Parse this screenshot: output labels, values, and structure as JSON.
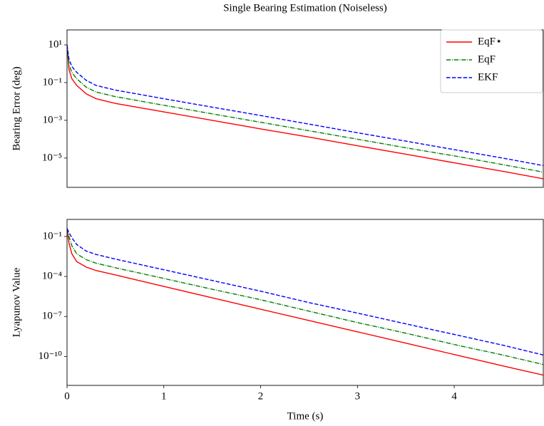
{
  "title": "Single Bearing Estimation (Noiseless)",
  "chart_data": [
    {
      "type": "line",
      "ylabel": "Bearing Error (deg)",
      "yscale": "log",
      "legend": "upper right",
      "x": [
        0,
        0.02,
        0.05,
        0.1,
        0.2,
        0.3,
        0.5,
        1,
        1.5,
        2,
        2.5,
        3,
        3.5,
        4,
        4.5,
        4.92
      ],
      "xlim": [
        0,
        4.92
      ],
      "ylim": [
        2.8e-07,
        62
      ],
      "yticks": [
        {
          "value": 10,
          "label": "10¹"
        },
        {
          "value": 0.1,
          "label": "10⁻¹"
        },
        {
          "value": 0.001,
          "label": "10⁻³"
        },
        {
          "value": 1e-05,
          "label": "10⁻⁵"
        }
      ],
      "series": [
        {
          "name": "EqF⋆",
          "color": "#ff0000",
          "linestyle": "solid",
          "values": [
            10,
            0.5,
            0.16,
            0.071,
            0.025,
            0.014,
            0.0079,
            0.0028,
            0.001,
            0.00035,
            0.00013,
            4.5e-05,
            1.6e-05,
            5.6e-06,
            2e-06,
            8e-07
          ]
        },
        {
          "name": "EqF",
          "color": "#008000",
          "linestyle": "dashdot",
          "values": [
            10,
            0.9,
            0.35,
            0.16,
            0.056,
            0.032,
            0.018,
            0.0063,
            0.0022,
            0.00079,
            0.00028,
            0.0001,
            3.5e-05,
            1.3e-05,
            4.5e-06,
            1.8e-06
          ]
        },
        {
          "name": "EKF",
          "color": "#0000ff",
          "linestyle": "dashed",
          "values": [
            10,
            1.8,
            0.71,
            0.35,
            0.13,
            0.071,
            0.04,
            0.014,
            0.005,
            0.0018,
            0.00063,
            0.00022,
            7.9e-05,
            2.8e-05,
            1e-05,
            4e-06
          ]
        }
      ]
    },
    {
      "type": "line",
      "ylabel": "Lyapunov Value",
      "xlabel": "Time (s)",
      "yscale": "log",
      "x": [
        0,
        0.02,
        0.05,
        0.1,
        0.2,
        0.3,
        0.5,
        1,
        1.5,
        2,
        2.5,
        3,
        3.5,
        4,
        4.5,
        4.92
      ],
      "xlim": [
        0,
        4.92
      ],
      "xticks": [
        0,
        1,
        2,
        3,
        4
      ],
      "ylim": [
        6.8e-13,
        1.9
      ],
      "yticks": [
        {
          "value": 0.1,
          "label": "10⁻¹"
        },
        {
          "value": 0.0001,
          "label": "10⁻⁴"
        },
        {
          "value": 1e-07,
          "label": "10⁻⁷"
        },
        {
          "value": 1e-10,
          "label": "10⁻¹⁰"
        }
      ],
      "series": [
        {
          "color": "#ff0000",
          "linestyle": "solid",
          "values": [
            0.4,
            0.032,
            0.005,
            0.0013,
            0.0005,
            0.00028,
            0.00013,
            1.8e-05,
            2.5e-06,
            3.5e-07,
            5e-08,
            7.1e-09,
            1e-09,
            1.4e-10,
            2e-11,
            4e-12
          ]
        },
        {
          "color": "#008000",
          "linestyle": "dashdot",
          "values": [
            0.4,
            0.1,
            0.02,
            0.005,
            0.0018,
            0.001,
            0.00045,
            7.1e-05,
            1.1e-05,
            1.8e-06,
            2.5e-07,
            3.5e-08,
            5.6e-09,
            7.9e-10,
            1.3e-10,
            2.5e-11
          ]
        },
        {
          "color": "#0000ff",
          "linestyle": "dashed",
          "values": [
            0.4,
            0.2,
            0.079,
            0.025,
            0.0079,
            0.0045,
            0.002,
            0.00032,
            5e-05,
            7.9e-06,
            1.1e-06,
            1.8e-07,
            2.8e-08,
            4.5e-09,
            7.1e-10,
            1.3e-10
          ]
        }
      ]
    }
  ]
}
